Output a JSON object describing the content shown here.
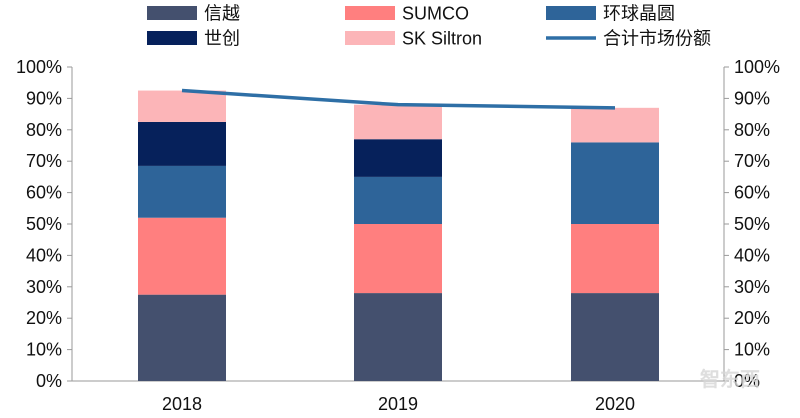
{
  "chart_data": {
    "type": "bar",
    "stacked": true,
    "categories": [
      "2018",
      "2019",
      "2020"
    ],
    "series": [
      {
        "name": "信越",
        "kind": "bar",
        "color": "#44506e",
        "values": [
          27.5,
          28,
          28
        ]
      },
      {
        "name": "SUMCO",
        "kind": "bar",
        "color": "#ff7f7f",
        "values": [
          24.5,
          22,
          22
        ]
      },
      {
        "name": "环球晶圆",
        "kind": "bar",
        "color": "#2e6499",
        "values": [
          16.5,
          15,
          26
        ]
      },
      {
        "name": "世创",
        "kind": "bar",
        "color": "#06215b",
        "values": [
          14,
          12,
          0
        ]
      },
      {
        "name": "SK Siltron",
        "kind": "bar",
        "color": "#fcb5b8",
        "values": [
          10,
          11,
          11
        ]
      },
      {
        "name": "合计市场份额",
        "kind": "line",
        "color": "#2e6fa6",
        "values": [
          92.5,
          88,
          87
        ]
      }
    ],
    "legend_order": [
      "信越",
      "SUMCO",
      "环球晶圆",
      "世创",
      "SK Siltron",
      "合计市场份额"
    ],
    "ylim": [
      0,
      100
    ],
    "yticks": [
      "0%",
      "10%",
      "20%",
      "30%",
      "40%",
      "50%",
      "60%",
      "70%",
      "80%",
      "90%",
      "100%"
    ],
    "secondary_yticks": [
      "0%",
      "10%",
      "20%",
      "30%",
      "40%",
      "50%",
      "60%",
      "70%",
      "80%",
      "90%",
      "100%"
    ],
    "title": "",
    "xlabel": "",
    "ylabel": "",
    "grid": false,
    "legend_position": "top"
  },
  "watermark": {
    "text": "智东西"
  }
}
